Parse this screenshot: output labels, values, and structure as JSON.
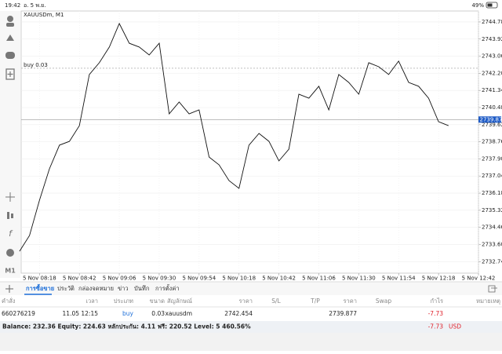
{
  "status_bar": {
    "time": "19:42",
    "date": "อ. 5 พ.ย.",
    "battery": "49%"
  },
  "chart_data": {
    "type": "line",
    "title": "XAUUSDm, M1",
    "color": "#111111",
    "grid": true,
    "x": [
      "5 Nov 08:06",
      "5 Nov 08:12",
      "5 Nov 08:18",
      "5 Nov 08:24",
      "5 Nov 08:30",
      "5 Nov 08:36",
      "5 Nov 08:42",
      "5 Nov 08:48",
      "5 Nov 08:54",
      "5 Nov 09:00",
      "5 Nov 09:06",
      "5 Nov 09:12",
      "5 Nov 09:18",
      "5 Nov 09:24",
      "5 Nov 09:30",
      "5 Nov 09:36",
      "5 Nov 09:42",
      "5 Nov 09:48",
      "5 Nov 09:54",
      "5 Nov 10:00",
      "5 Nov 10:06",
      "5 Nov 10:12",
      "5 Nov 10:18",
      "5 Nov 10:24",
      "5 Nov 10:30",
      "5 Nov 10:36",
      "5 Nov 10:42",
      "5 Nov 10:48",
      "5 Nov 10:54",
      "5 Nov 11:00",
      "5 Nov 11:06",
      "5 Nov 11:12",
      "5 Nov 11:18",
      "5 Nov 11:24",
      "5 Nov 11:30",
      "5 Nov 11:36",
      "5 Nov 11:42",
      "5 Nov 11:48",
      "5 Nov 11:54",
      "5 Nov 12:00",
      "5 Nov 12:06",
      "5 Nov 12:12",
      "5 Nov 12:18",
      "5 Nov 12:24"
    ],
    "values": [
      2733.26,
      2734.05,
      2735.82,
      2737.4,
      2738.59,
      2738.78,
      2739.57,
      2742.14,
      2742.73,
      2743.52,
      2744.7,
      2743.71,
      2743.52,
      2743.12,
      2743.71,
      2740.16,
      2740.76,
      2740.16,
      2740.36,
      2737.99,
      2737.6,
      2736.81,
      2736.42,
      2738.59,
      2739.18,
      2738.78,
      2737.8,
      2738.39,
      2741.15,
      2740.95,
      2741.55,
      2740.36,
      2742.14,
      2741.74,
      2741.15,
      2742.73,
      2742.53,
      2742.14,
      2742.81,
      2741.74,
      2741.55,
      2740.95,
      2739.77,
      2739.57
    ],
    "xlim": [
      "5 Nov 08:07",
      "5 Nov 12:42"
    ],
    "xticks": [
      "5 Nov 08:18",
      "5 Nov 08:42",
      "5 Nov 09:06",
      "5 Nov 09:30",
      "5 Nov 09:54",
      "5 Nov 10:18",
      "5 Nov 10:42",
      "5 Nov 11:06",
      "5 Nov 11:30",
      "5 Nov 11:54",
      "5 Nov 12:18",
      "5 Nov 12:42"
    ],
    "ylim": [
      2732.16,
      2745.33
    ],
    "yticks": [
      {
        "value": 2744.78,
        "label": "2744.780"
      },
      {
        "value": 2743.92,
        "label": "2743.920"
      },
      {
        "value": 2743.06,
        "label": "2743.060"
      },
      {
        "value": 2742.2,
        "label": "2742.200"
      },
      {
        "value": 2741.34,
        "label": "2741.340"
      },
      {
        "value": 2740.48,
        "label": "2740.480"
      },
      {
        "value": 2739.62,
        "label": "2739.620"
      },
      {
        "value": 2738.76,
        "label": "2738.760"
      },
      {
        "value": 2737.9,
        "label": "2737.900"
      },
      {
        "value": 2737.04,
        "label": "2737.040"
      },
      {
        "value": 2736.18,
        "label": "2736.180"
      },
      {
        "value": 2735.32,
        "label": "2735.320"
      },
      {
        "value": 2734.46,
        "label": "2734.460"
      },
      {
        "value": 2733.6,
        "label": "2733.600"
      },
      {
        "value": 2732.74,
        "label": "2732.740"
      }
    ],
    "order_line": {
      "label": "buy 0.03",
      "value": 2742.454
    },
    "price_line": 2739.877,
    "toolbar_label": "M1"
  },
  "tabs": [
    "การซื้อขาย",
    "ประวัติ",
    "กล่องจดหมาย",
    "ข่าว",
    "บันทึก",
    "การตั้งค่า"
  ],
  "positions": {
    "columns": [
      "คำสั่ง",
      "เวลา",
      "ประเภท",
      "ขนาด",
      "สัญลักษณ์",
      "ราคา",
      "S/L",
      "T/P",
      "ราคา",
      "Swap",
      "กำไร",
      "หมายเหตุ"
    ],
    "rows": [
      [
        "660276219",
        "11.05 12:15",
        "buy",
        "0.03",
        "xauusdm",
        "2742.454",
        "",
        "",
        "2739.877",
        "",
        "-7.73",
        ""
      ]
    ]
  },
  "footer": {
    "summary": "Balance: 232.36 Equity: 224.63 หลักประกัน: 4.11 ฟรี: 220.52 Level: 5 460.56%",
    "profit": "-7.73",
    "currency": "USD"
  }
}
